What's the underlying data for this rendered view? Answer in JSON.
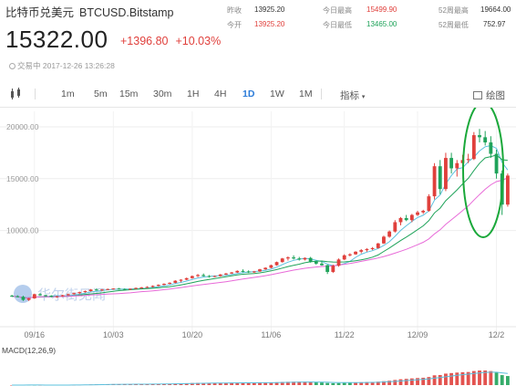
{
  "header": {
    "name": "比特币兑美元",
    "symbol": "BTCUSD.Bitstamp"
  },
  "quote": {
    "price": "15322.00",
    "change": "+1396.80",
    "change_pct": "+10.03%",
    "status": "交易中 2017-12-26 13:26:28"
  },
  "stats": {
    "yesterday_close_label": "昨收",
    "yesterday_close": "13925.20",
    "open_label": "今开",
    "open": "13925.20",
    "high_label": "今日最高",
    "high": "15499.90",
    "low_label": "今日最低",
    "low": "13465.00",
    "w52_high_label": "52周最高",
    "w52_high": "19664.00",
    "w52_low_label": "52周最低",
    "w52_low": "752.97"
  },
  "toolbar": {
    "periods": [
      "1m",
      "5m",
      "15m",
      "30m",
      "1H",
      "4H",
      "1D",
      "1W",
      "1M"
    ],
    "active_period": "1D",
    "indicator": "指标",
    "draw": "绘图"
  },
  "watermark": "华尔街见闻",
  "colors": {
    "up": "#e0403c",
    "down": "#1fa35a",
    "ma_short": "#5bc0de",
    "ma_mid": "#1fa35a",
    "ma_long": "#e86ad8",
    "active": "#2b7bd8",
    "annotation": "#1aa83a"
  },
  "macd_label": "MACD(12,26,9)",
  "chart_data": {
    "type": "candlestick",
    "x_ticks": [
      "09/16",
      "10/03",
      "10/20",
      "11/06",
      "11/22",
      "12/09",
      "12/2"
    ],
    "y_ticks": [
      "20000.00",
      "15000.00",
      "10000.00"
    ],
    "ylim": [
      2300,
      21500
    ],
    "series": [
      {
        "name": "BTCUSD",
        "ohlc": [
          [
            3700,
            3800,
            3600,
            3650
          ],
          [
            3650,
            3750,
            3550,
            3600
          ],
          [
            3600,
            3700,
            3200,
            3300
          ],
          [
            3300,
            3500,
            3200,
            3450
          ],
          [
            3450,
            3900,
            3400,
            3850
          ],
          [
            3850,
            3950,
            3700,
            3750
          ],
          [
            3750,
            3800,
            3600,
            3700
          ],
          [
            3700,
            3750,
            3550,
            3600
          ],
          [
            3600,
            3700,
            3500,
            3650
          ],
          [
            3650,
            3800,
            3600,
            3750
          ],
          [
            3750,
            3900,
            3700,
            3850
          ],
          [
            3850,
            4000,
            3800,
            3950
          ],
          [
            3950,
            4100,
            3850,
            4050
          ],
          [
            4050,
            4200,
            4000,
            4150
          ],
          [
            4150,
            4350,
            4100,
            4300
          ],
          [
            4300,
            4400,
            4200,
            4250
          ],
          [
            4250,
            4350,
            4150,
            4300
          ],
          [
            4300,
            4400,
            4250,
            4350
          ],
          [
            4350,
            4420,
            4300,
            4400
          ],
          [
            4400,
            4450,
            4300,
            4350
          ],
          [
            4350,
            4400,
            4250,
            4300
          ],
          [
            4300,
            4400,
            4250,
            4380
          ],
          [
            4380,
            4500,
            4350,
            4450
          ],
          [
            4450,
            4550,
            4400,
            4500
          ],
          [
            4500,
            4620,
            4450,
            4550
          ],
          [
            4550,
            4700,
            4500,
            4650
          ],
          [
            4650,
            4800,
            4600,
            4750
          ],
          [
            4750,
            4900,
            4700,
            4850
          ],
          [
            4850,
            5000,
            4800,
            4950
          ],
          [
            4950,
            5200,
            4900,
            5150
          ],
          [
            5150,
            5300,
            5000,
            5250
          ],
          [
            5250,
            5450,
            5200,
            5400
          ],
          [
            5400,
            5650,
            5350,
            5600
          ],
          [
            5600,
            5800,
            5500,
            5700
          ],
          [
            5700,
            5850,
            5550,
            5600
          ],
          [
            5600,
            5700,
            5450,
            5550
          ],
          [
            5550,
            5650,
            5500,
            5600
          ],
          [
            5600,
            5800,
            5550,
            5750
          ],
          [
            5750,
            5900,
            5700,
            5850
          ],
          [
            5850,
            6000,
            5800,
            5950
          ],
          [
            5950,
            6150,
            5900,
            6100
          ],
          [
            6100,
            6250,
            5950,
            6050
          ],
          [
            6050,
            6150,
            5900,
            6000
          ],
          [
            6000,
            6100,
            5900,
            6050
          ],
          [
            6050,
            6300,
            6000,
            6250
          ],
          [
            6250,
            6450,
            6200,
            6400
          ],
          [
            6400,
            6700,
            6350,
            6650
          ],
          [
            6650,
            7000,
            6600,
            6950
          ],
          [
            6950,
            7350,
            6900,
            7300
          ],
          [
            7300,
            7500,
            7100,
            7400
          ],
          [
            7400,
            7600,
            7200,
            7300
          ],
          [
            7300,
            7450,
            7100,
            7200
          ],
          [
            7200,
            7400,
            7100,
            7350
          ],
          [
            7350,
            7450,
            6900,
            7000
          ],
          [
            7000,
            7100,
            6700,
            6800
          ],
          [
            6800,
            7000,
            6600,
            6650
          ],
          [
            6650,
            6700,
            5800,
            6000
          ],
          [
            6000,
            6700,
            5900,
            6600
          ],
          [
            6600,
            7300,
            6500,
            7200
          ],
          [
            7200,
            7700,
            7150,
            7600
          ],
          [
            7600,
            7800,
            7500,
            7700
          ],
          [
            7700,
            8000,
            7650,
            7950
          ],
          [
            7950,
            8200,
            7800,
            8100
          ],
          [
            8100,
            8300,
            7950,
            8200
          ],
          [
            8200,
            8400,
            8100,
            8300
          ],
          [
            8300,
            8800,
            8250,
            8750
          ],
          [
            8750,
            9500,
            8700,
            9400
          ],
          [
            9400,
            10000,
            9300,
            9900
          ],
          [
            9900,
            11000,
            9800,
            10800
          ],
          [
            10800,
            11300,
            10500,
            11200
          ],
          [
            11200,
            11500,
            10900,
            11000
          ],
          [
            11000,
            11600,
            10800,
            11500
          ],
          [
            11500,
            11900,
            11400,
            11750
          ],
          [
            11750,
            12000,
            11600,
            11900
          ],
          [
            11900,
            13500,
            11800,
            13300
          ],
          [
            13300,
            16500,
            13000,
            16200
          ],
          [
            16200,
            16800,
            13500,
            14000
          ],
          [
            14000,
            17500,
            13800,
            17000
          ],
          [
            17000,
            17500,
            15500,
            16000
          ],
          [
            16000,
            16800,
            15200,
            16500
          ],
          [
            16500,
            17300,
            16000,
            16800
          ],
          [
            16800,
            17400,
            16500,
            16900
          ],
          [
            16900,
            19500,
            16800,
            19200
          ],
          [
            19200,
            19800,
            18500,
            19000
          ],
          [
            19000,
            19600,
            18200,
            18500
          ],
          [
            18500,
            19100,
            17000,
            17400
          ],
          [
            17400,
            17800,
            15000,
            15500
          ],
          [
            15500,
            15800,
            11500,
            12500
          ],
          [
            12500,
            15500,
            12300,
            15300
          ]
        ]
      }
    ]
  }
}
